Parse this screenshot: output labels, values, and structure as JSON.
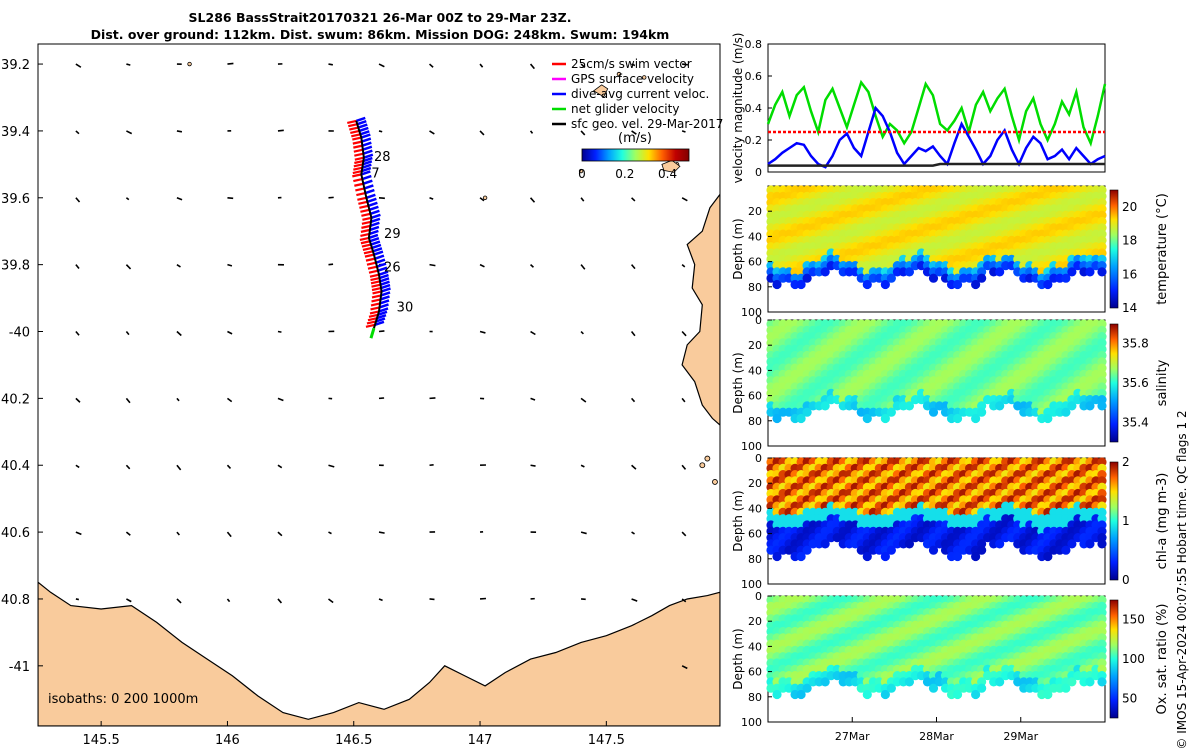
{
  "header": {
    "line1": "SL286 BassStrait20170321 26-Mar 00Z to 29-Mar 23Z.",
    "line2": "Dist. over ground: 112km. Dist. swum: 86km. Mission DOG: 248km. Swum: 194km"
  },
  "colors": {
    "land": "#f9cb9c",
    "swim": "#ff0000",
    "gps": "#ff00ff",
    "current": "#0000ff",
    "net": "#00dd00",
    "sfc": "#000000"
  },
  "chart_data": [
    {
      "type": "map",
      "xlim": [
        145.25,
        147.95
      ],
      "ylim": [
        -41.18,
        -39.14
      ],
      "x_ticks": [
        145.5,
        146,
        146.5,
        147,
        147.5
      ],
      "x_tick_labels": [
        "145.5",
        "146",
        "146.5",
        "147",
        "147.5"
      ],
      "y_ticks": [
        -39.2,
        -39.4,
        -39.6,
        -39.8,
        -40,
        -40.2,
        -40.4,
        -40.6,
        -40.8,
        -41
      ],
      "y_tick_labels": [
        "39.2",
        "39.4",
        "39.6",
        "39.8",
        "-40",
        "40.2",
        "40.4",
        "40.6",
        "40.8",
        "-41"
      ],
      "legend": [
        {
          "label": "25cm/s swim vector",
          "color": "#ff0000"
        },
        {
          "label": "GPS surface velocity",
          "color": "#ff00ff"
        },
        {
          "label": "dive-avg current veloc.",
          "color": "#0000ff"
        },
        {
          "label": "net glider velocity",
          "color": "#00dd00"
        },
        {
          "label": "sfc geo. vel. 29-Mar-2017",
          "color": "#000000"
        }
      ],
      "legend_placement": "top-right",
      "colorbar": {
        "label": "(m/s)",
        "ticks": [
          "0",
          "0.2",
          "0.4"
        ],
        "range": [
          0,
          0.5
        ]
      },
      "isobaths_label": "isobaths: 0   200  1000m",
      "day_labels": [
        {
          "text": "28",
          "lon": 146.58,
          "lat": -39.49
        },
        {
          "text": "7",
          "lon": 146.57,
          "lat": -39.54
        },
        {
          "text": "29",
          "lon": 146.62,
          "lat": -39.72
        },
        {
          "text": "26",
          "lon": 146.62,
          "lat": -39.82
        },
        {
          "text": "30",
          "lon": 146.67,
          "lat": -39.94
        }
      ],
      "track": [
        [
          146.51,
          -39.37
        ],
        [
          146.53,
          -39.42
        ],
        [
          146.54,
          -39.48
        ],
        [
          146.53,
          -39.53
        ],
        [
          146.55,
          -39.6
        ],
        [
          146.57,
          -39.66
        ],
        [
          146.56,
          -39.72
        ],
        [
          146.58,
          -39.77
        ],
        [
          146.6,
          -39.83
        ],
        [
          146.61,
          -39.88
        ],
        [
          146.6,
          -39.94
        ],
        [
          146.58,
          -39.99
        ]
      ],
      "coast": [
        [
          145.25,
          -40.75
        ],
        [
          145.3,
          -40.78
        ],
        [
          145.38,
          -40.82
        ],
        [
          145.5,
          -40.83
        ],
        [
          145.62,
          -40.82
        ],
        [
          145.72,
          -40.87
        ],
        [
          145.82,
          -40.93
        ],
        [
          145.92,
          -40.98
        ],
        [
          146.02,
          -41.03
        ],
        [
          146.12,
          -41.09
        ],
        [
          146.22,
          -41.14
        ],
        [
          146.32,
          -41.16
        ],
        [
          146.42,
          -41.14
        ],
        [
          146.52,
          -41.11
        ],
        [
          146.62,
          -41.13
        ],
        [
          146.72,
          -41.1
        ],
        [
          146.8,
          -41.05
        ],
        [
          146.86,
          -41.0
        ],
        [
          146.94,
          -41.03
        ],
        [
          147.02,
          -41.06
        ],
        [
          147.1,
          -41.02
        ],
        [
          147.2,
          -40.98
        ],
        [
          147.3,
          -40.96
        ],
        [
          147.4,
          -40.93
        ],
        [
          147.5,
          -40.91
        ],
        [
          147.6,
          -40.88
        ],
        [
          147.68,
          -40.85
        ],
        [
          147.75,
          -40.82
        ],
        [
          147.82,
          -40.8
        ],
        [
          147.9,
          -40.79
        ],
        [
          147.95,
          -40.78
        ]
      ],
      "island": [
        [
          147.95,
          -39.59
        ],
        [
          147.91,
          -39.63
        ],
        [
          147.88,
          -39.7
        ],
        [
          147.82,
          -39.74
        ],
        [
          147.85,
          -39.8
        ],
        [
          147.84,
          -39.87
        ],
        [
          147.88,
          -39.92
        ],
        [
          147.87,
          -40.0
        ],
        [
          147.82,
          -40.04
        ],
        [
          147.8,
          -40.1
        ],
        [
          147.85,
          -40.15
        ],
        [
          147.88,
          -40.22
        ],
        [
          147.92,
          -40.26
        ],
        [
          147.95,
          -40.28
        ]
      ]
    },
    {
      "type": "line",
      "ylabel": "velocity magnitude (m/s)",
      "ylim": [
        0,
        0.8
      ],
      "y_ticks": [
        "0",
        "0.2",
        "0.4",
        "0.6",
        "0.8"
      ],
      "xlim": [
        0,
        4
      ],
      "series": [
        {
          "color": "#00dd00",
          "values": [
            0.3,
            0.42,
            0.5,
            0.35,
            0.48,
            0.53,
            0.38,
            0.25,
            0.45,
            0.52,
            0.4,
            0.28,
            0.42,
            0.56,
            0.5,
            0.35,
            0.22,
            0.3,
            0.26,
            0.18,
            0.25,
            0.4,
            0.55,
            0.48,
            0.3,
            0.26,
            0.32,
            0.4,
            0.25,
            0.42,
            0.5,
            0.38,
            0.46,
            0.52,
            0.35,
            0.2,
            0.38,
            0.46,
            0.3,
            0.2,
            0.3,
            0.44,
            0.36,
            0.5,
            0.28,
            0.18,
            0.35,
            0.55
          ]
        },
        {
          "color": "#0000ff",
          "values": [
            0.05,
            0.08,
            0.12,
            0.15,
            0.18,
            0.17,
            0.1,
            0.05,
            0.03,
            0.1,
            0.2,
            0.24,
            0.15,
            0.1,
            0.25,
            0.4,
            0.35,
            0.25,
            0.12,
            0.05,
            0.1,
            0.15,
            0.13,
            0.16,
            0.1,
            0.05,
            0.18,
            0.3,
            0.22,
            0.14,
            0.05,
            0.1,
            0.2,
            0.26,
            0.14,
            0.05,
            0.15,
            0.22,
            0.18,
            0.08,
            0.1,
            0.14,
            0.08,
            0.15,
            0.1,
            0.05,
            0.08,
            0.1
          ]
        },
        {
          "color": "#ff0000",
          "values": [
            0.25,
            0.25,
            0.25,
            0.25,
            0.25,
            0.25,
            0.25,
            0.25,
            0.25,
            0.25,
            0.25,
            0.25,
            0.25,
            0.25,
            0.25,
            0.25,
            0.25,
            0.25,
            0.25,
            0.25,
            0.25,
            0.25,
            0.25,
            0.25,
            0.25,
            0.25,
            0.25,
            0.25,
            0.25,
            0.25,
            0.25,
            0.25,
            0.25,
            0.25,
            0.25,
            0.25,
            0.25,
            0.25,
            0.25,
            0.25,
            0.25,
            0.25,
            0.25,
            0.25,
            0.25,
            0.25,
            0.25,
            0.25
          ]
        },
        {
          "color": "#222222",
          "values": [
            0.04,
            0.04,
            0.04,
            0.04,
            0.04,
            0.04,
            0.04,
            0.04,
            0.04,
            0.04,
            0.04,
            0.04,
            0.04,
            0.04,
            0.04,
            0.04,
            0.04,
            0.04,
            0.04,
            0.04,
            0.04,
            0.04,
            0.04,
            0.04,
            0.05,
            0.05,
            0.05,
            0.05,
            0.05,
            0.05,
            0.05,
            0.05,
            0.05,
            0.05,
            0.05,
            0.05,
            0.05,
            0.05,
            0.05,
            0.05,
            0.05,
            0.05,
            0.05,
            0.05,
            0.05,
            0.05,
            0.05,
            0.05
          ]
        }
      ]
    },
    {
      "type": "heatmap",
      "ylabel": "Depth (m)",
      "y_ticks": [
        "20",
        "40",
        "60",
        "80",
        "100"
      ],
      "colorbar_label": "temperature (°C)",
      "colorbar_ticks": [
        "14",
        "16",
        "18",
        "20"
      ],
      "range": [
        14,
        21
      ],
      "profile": "temperature"
    },
    {
      "type": "heatmap",
      "ylabel": "Depth (m)",
      "y_ticks": [
        "0",
        "20",
        "40",
        "60",
        "80",
        "100"
      ],
      "colorbar_label": "salinity",
      "colorbar_ticks": [
        "35.4",
        "35.6",
        "35.8"
      ],
      "range": [
        35.3,
        35.9
      ],
      "profile": "salinity"
    },
    {
      "type": "heatmap",
      "ylabel": "Depth (m)",
      "y_ticks": [
        "0",
        "20",
        "40",
        "60",
        "80",
        "100"
      ],
      "colorbar_label": "chl-a (mg m-3)",
      "colorbar_ticks": [
        "0",
        "1",
        "2"
      ],
      "range": [
        0,
        2
      ],
      "profile": "chla"
    },
    {
      "type": "heatmap",
      "ylabel": "Depth (m)",
      "y_ticks": [
        "0",
        "20",
        "40",
        "60",
        "80",
        "100"
      ],
      "colorbar_label": "Ox. sat. ratio (%)",
      "colorbar_ticks": [
        "50",
        "100",
        "150"
      ],
      "range": [
        25,
        175
      ],
      "profile": "oxygen"
    }
  ],
  "time_axis": {
    "labels": [
      "27Mar",
      "28Mar",
      "29Mar"
    ]
  },
  "footer_text": "© IMOS 15-Apr-2024 00:07:55 Hobart time. QC flags 1  2"
}
